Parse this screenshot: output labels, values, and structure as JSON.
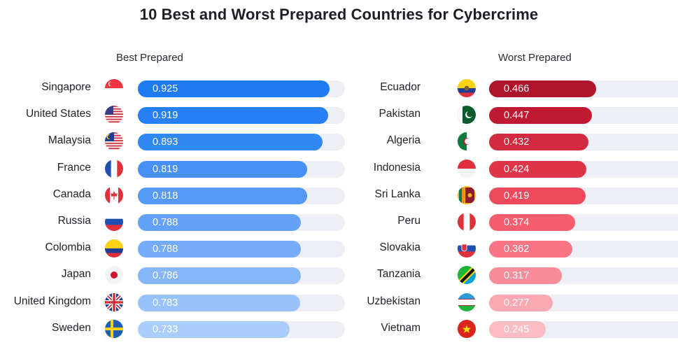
{
  "chart_data": {
    "type": "bar",
    "title": "10 Best and Worst Prepared Countries for Cybercrime",
    "panels": [
      {
        "key": "best",
        "title": "Best Prepared",
        "categories": [
          "Singapore",
          "United States",
          "Malaysia",
          "France",
          "Canada",
          "Russia",
          "Colombia",
          "Japan",
          "United Kingdom",
          "Sweden"
        ],
        "flags": [
          "singapore-flag-icon",
          "united-states-flag-icon",
          "malaysia-flag-icon",
          "france-flag-icon",
          "canada-flag-icon",
          "russia-flag-icon",
          "colombia-flag-icon",
          "japan-flag-icon",
          "united-kingdom-flag-icon",
          "sweden-flag-icon"
        ],
        "values": [
          0.925,
          0.919,
          0.893,
          0.819,
          0.818,
          0.788,
          0.788,
          0.786,
          0.783,
          0.733
        ],
        "value_labels": [
          "0.925",
          "0.919",
          "0.893",
          "0.819",
          "0.818",
          "0.788",
          "0.788",
          "0.786",
          "0.783",
          "0.733"
        ],
        "colors": [
          "#1f7bf3",
          "#2680f4",
          "#3088f5",
          "#4791f6",
          "#559af7",
          "#64a2f7",
          "#74acf8",
          "#84b6f9",
          "#98c3fa",
          "#aacdfb"
        ],
        "xlim": [
          0,
          1
        ]
      },
      {
        "key": "worst",
        "title": "Worst Prepared",
        "categories": [
          "Ecuador",
          "Pakistan",
          "Algeria",
          "Indonesia",
          "Sri Lanka",
          "Peru",
          "Slovakia",
          "Tanzania",
          "Uzbekistan",
          "Vietnam"
        ],
        "flags": [
          "ecuador-flag-icon",
          "pakistan-flag-icon",
          "algeria-flag-icon",
          "indonesia-flag-icon",
          "sri-lanka-flag-icon",
          "peru-flag-icon",
          "slovakia-flag-icon",
          "tanzania-flag-icon",
          "uzbekistan-flag-icon",
          "vietnam-flag-icon"
        ],
        "values": [
          0.466,
          0.447,
          0.432,
          0.424,
          0.419,
          0.374,
          0.362,
          0.317,
          0.277,
          0.245
        ],
        "value_labels": [
          "0.466",
          "0.447",
          "0.432",
          "0.424",
          "0.419",
          "0.374",
          "0.362",
          "0.317",
          "0.277",
          "0.245"
        ],
        "colors": [
          "#b0142b",
          "#bf1a31",
          "#d22a3e",
          "#e03548",
          "#ef4a5c",
          "#f45e6e",
          "#f77585",
          "#f98c99",
          "#fba8b2",
          "#fcbcc4"
        ],
        "xlim": [
          0,
          0.9
        ]
      }
    ]
  }
}
